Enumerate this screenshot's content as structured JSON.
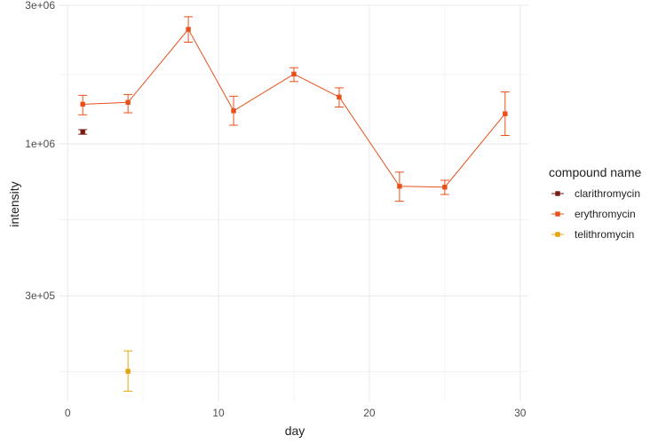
{
  "chart_data": {
    "type": "line",
    "xlabel": "day",
    "ylabel": "intensity",
    "xlim": [
      -0.6,
      30.6
    ],
    "ylim": [
      130000,
      3000000
    ],
    "y_scale": "log",
    "x_ticks": [
      0,
      10,
      20,
      30
    ],
    "x_tick_labels": [
      "0",
      "10",
      "20",
      "30"
    ],
    "y_ticks": [
      300000,
      1000000,
      3000000
    ],
    "y_tick_labels": [
      "3e+05",
      "1e+06",
      "3e+06"
    ],
    "grid": true,
    "legend": {
      "title": "compound name",
      "position": "right",
      "entries": [
        "clarithromycin",
        "erythromycin",
        "telithromycin"
      ]
    },
    "series": [
      {
        "name": "clarithromycin",
        "color": "#7a1a12",
        "connected": false,
        "points": [
          {
            "x": 1,
            "y": 1100000,
            "ymin": 1080000,
            "ymax": 1120000
          }
        ]
      },
      {
        "name": "erythromycin",
        "color": "#e8501a",
        "connected": true,
        "points": [
          {
            "x": 1,
            "y": 1370000,
            "ymin": 1260000,
            "ymax": 1470000
          },
          {
            "x": 4,
            "y": 1390000,
            "ymin": 1280000,
            "ymax": 1480000
          },
          {
            "x": 8,
            "y": 2480000,
            "ymin": 2240000,
            "ymax": 2740000
          },
          {
            "x": 11,
            "y": 1300000,
            "ymin": 1160000,
            "ymax": 1460000
          },
          {
            "x": 15,
            "y": 1740000,
            "ymin": 1640000,
            "ymax": 1830000
          },
          {
            "x": 18,
            "y": 1450000,
            "ymin": 1340000,
            "ymax": 1560000
          },
          {
            "x": 22,
            "y": 715000,
            "ymin": 635000,
            "ymax": 800000
          },
          {
            "x": 25,
            "y": 710000,
            "ymin": 670000,
            "ymax": 750000
          },
          {
            "x": 29,
            "y": 1270000,
            "ymin": 1070000,
            "ymax": 1510000
          }
        ]
      },
      {
        "name": "telithromycin",
        "color": "#e6a40a",
        "connected": false,
        "points": [
          {
            "x": 4,
            "y": 165000,
            "ymin": 141000,
            "ymax": 194000
          }
        ]
      }
    ]
  }
}
